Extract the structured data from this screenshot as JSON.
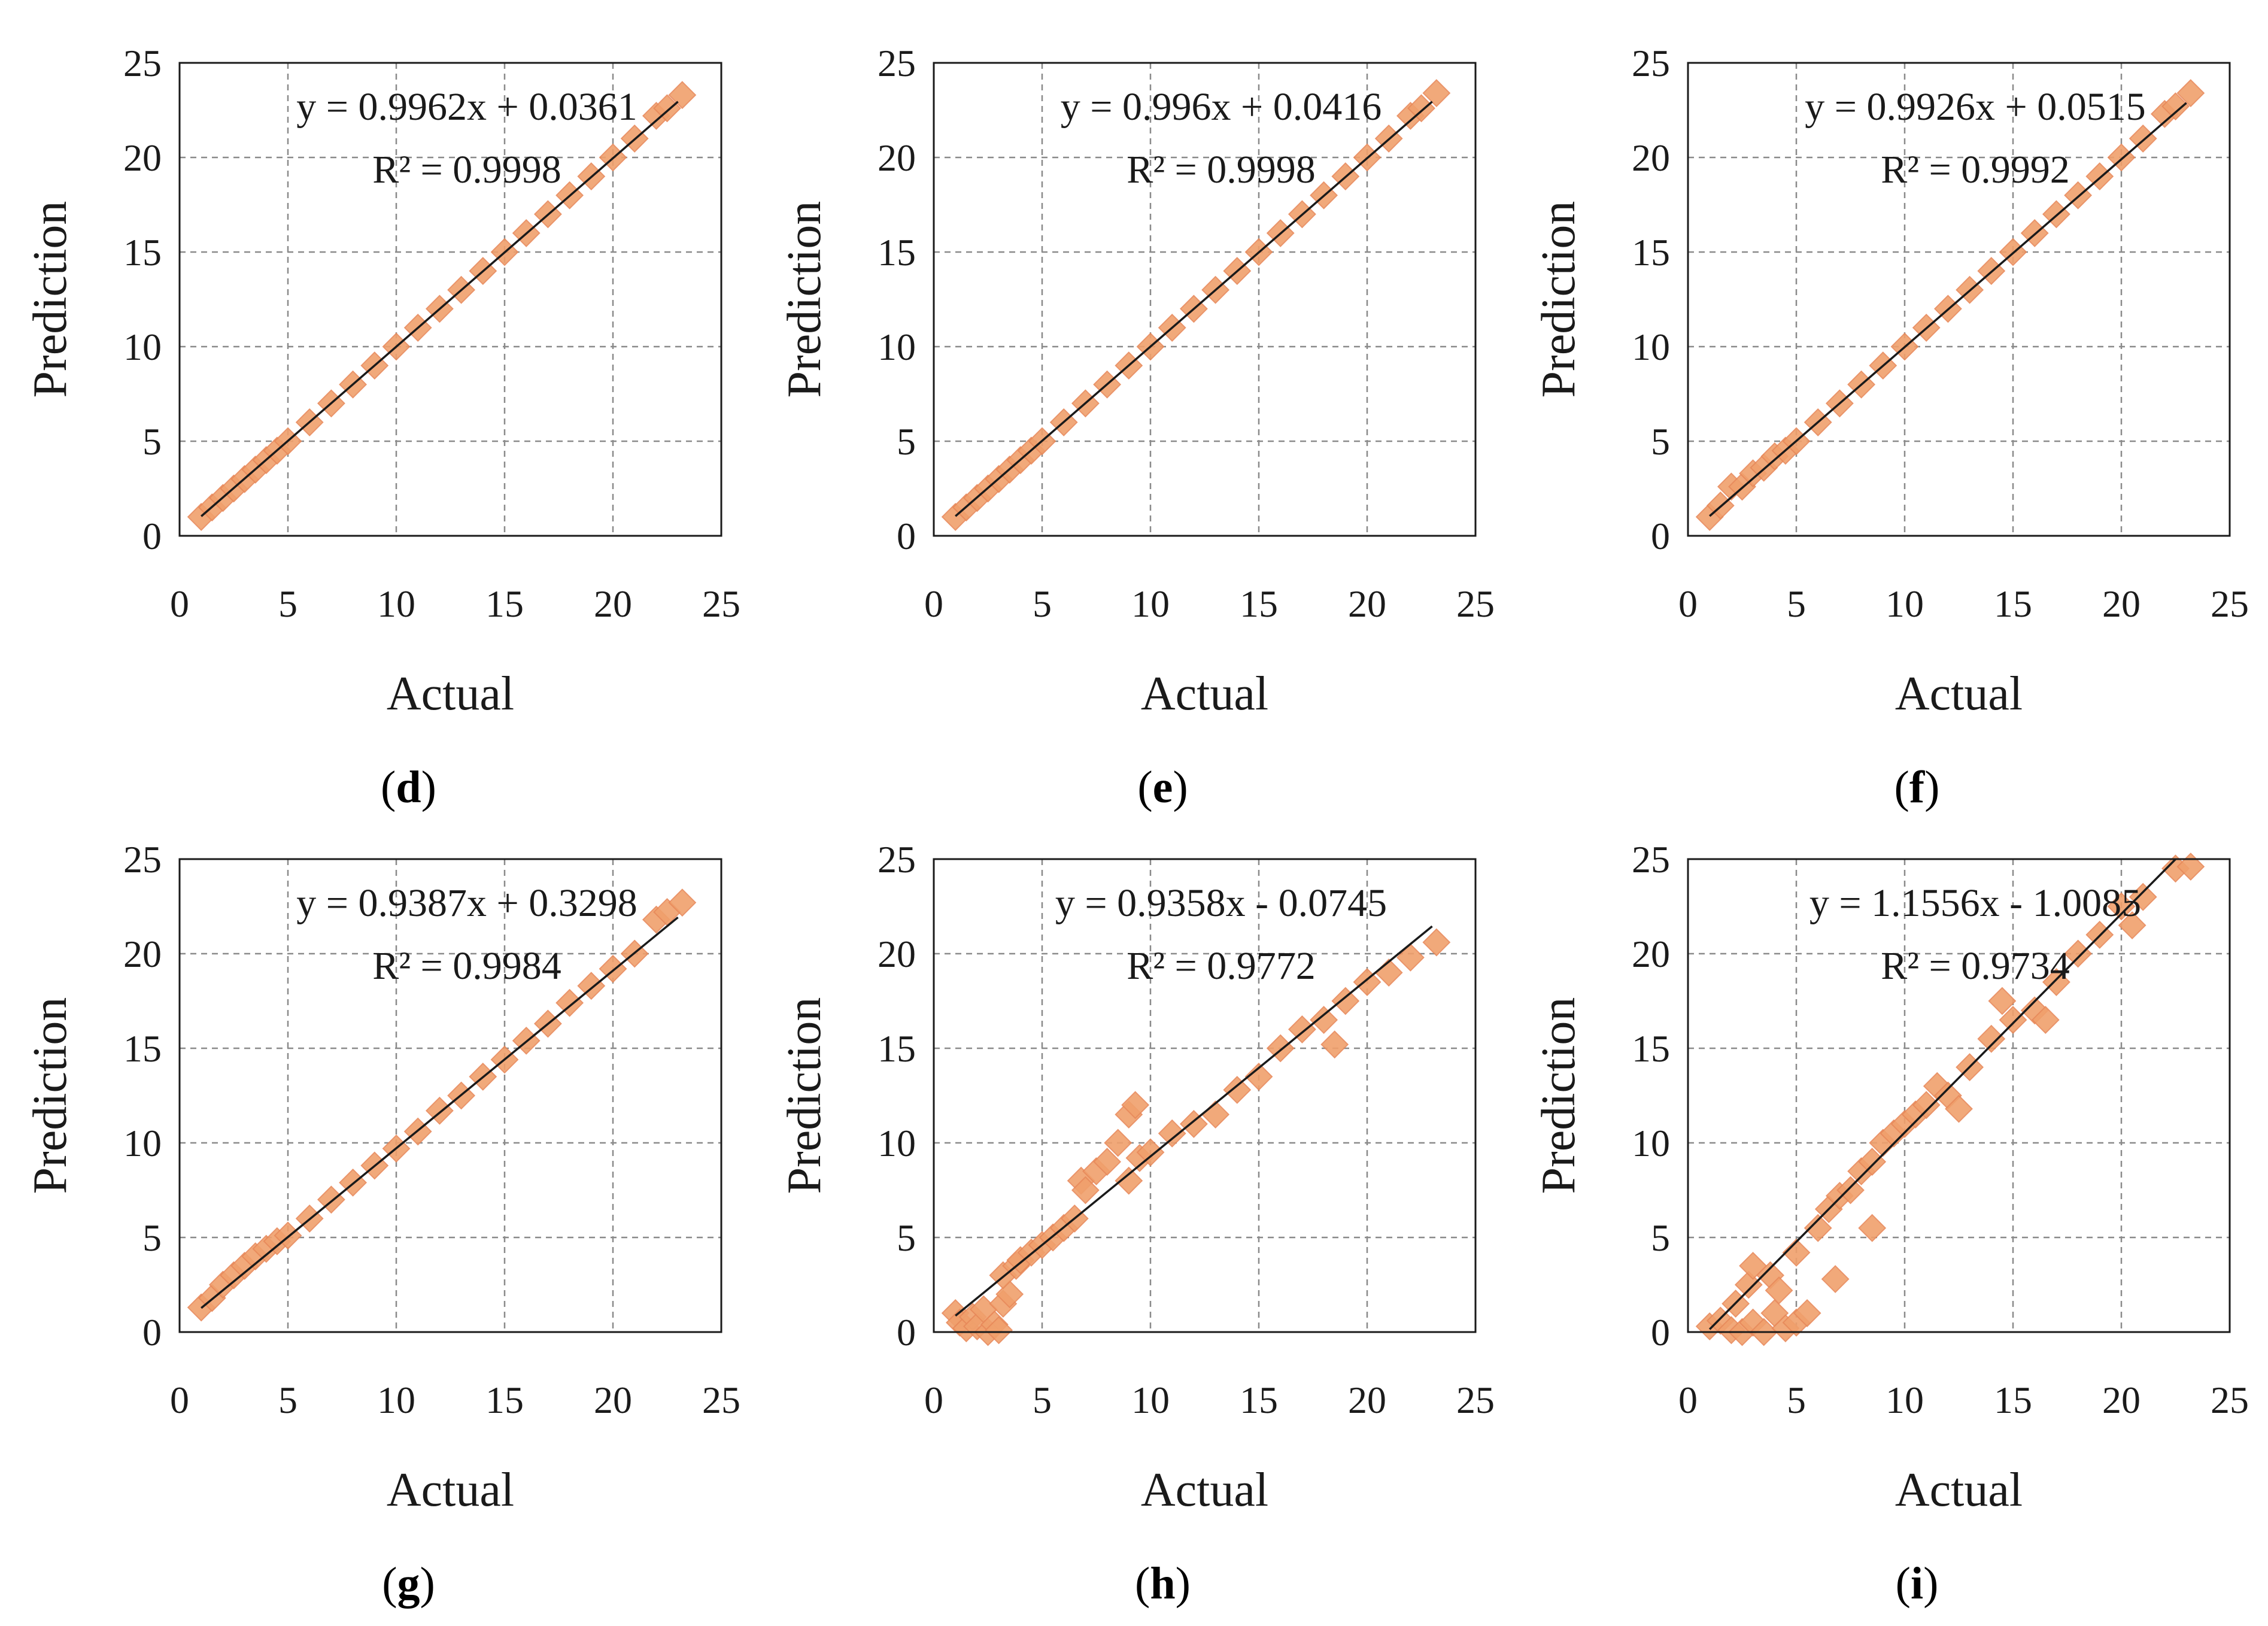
{
  "style": {
    "marker_color": "#f0a06c",
    "marker_stroke": "#e8895a",
    "line_color": "#1a1a1a",
    "grid_color": "#8a8a8a",
    "frame_color": "#1a1a1a"
  },
  "chart_data": [
    {
      "panel": "d",
      "type": "scatter",
      "xlabel": "Actual",
      "ylabel": "Prediction",
      "xlim": [
        0,
        25
      ],
      "ylim": [
        0,
        25
      ],
      "xticks": [
        0,
        5,
        10,
        15,
        20,
        25
      ],
      "yticks": [
        0,
        5,
        10,
        15,
        20,
        25
      ],
      "grid": true,
      "equation": "y = 0.9962x + 0.0361",
      "r2": "R² = 0.9998",
      "trendline": {
        "slope": 0.9962,
        "intercept": 0.0361,
        "x_range": [
          1.0,
          23.0
        ]
      },
      "points": [
        [
          1.0,
          1.0
        ],
        [
          1.5,
          1.5
        ],
        [
          2,
          2
        ],
        [
          2.5,
          2.5
        ],
        [
          3,
          3
        ],
        [
          3.5,
          3.5
        ],
        [
          4,
          4
        ],
        [
          4.5,
          4.5
        ],
        [
          5,
          5
        ],
        [
          6,
          6
        ],
        [
          7,
          7
        ],
        [
          8,
          8
        ],
        [
          9,
          9
        ],
        [
          10,
          10
        ],
        [
          11,
          11
        ],
        [
          12,
          12
        ],
        [
          13,
          13
        ],
        [
          14,
          14
        ],
        [
          15,
          15
        ],
        [
          16,
          16
        ],
        [
          17,
          17
        ],
        [
          18,
          18
        ],
        [
          19,
          19
        ],
        [
          20,
          20
        ],
        [
          21,
          21
        ],
        [
          22,
          22.2
        ],
        [
          22.5,
          22.6
        ],
        [
          23.2,
          23.3
        ]
      ]
    },
    {
      "panel": "e",
      "type": "scatter",
      "xlabel": "Actual",
      "ylabel": "Prediction",
      "xlim": [
        0,
        25
      ],
      "ylim": [
        0,
        25
      ],
      "xticks": [
        0,
        5,
        10,
        15,
        20,
        25
      ],
      "yticks": [
        0,
        5,
        10,
        15,
        20,
        25
      ],
      "grid": true,
      "equation": "y = 0.996x + 0.0416",
      "r2": "R² = 0.9998",
      "trendline": {
        "slope": 0.996,
        "intercept": 0.0416,
        "x_range": [
          1.0,
          23.0
        ]
      },
      "points": [
        [
          1.0,
          1.0
        ],
        [
          1.5,
          1.5
        ],
        [
          2,
          2
        ],
        [
          2.5,
          2.5
        ],
        [
          3,
          3
        ],
        [
          3.5,
          3.5
        ],
        [
          4,
          4
        ],
        [
          4.5,
          4.5
        ],
        [
          5,
          5
        ],
        [
          6,
          6
        ],
        [
          7,
          7
        ],
        [
          8,
          8
        ],
        [
          9,
          9
        ],
        [
          10,
          10
        ],
        [
          11,
          11
        ],
        [
          12,
          12
        ],
        [
          13,
          13
        ],
        [
          14,
          14
        ],
        [
          15,
          15
        ],
        [
          16,
          16
        ],
        [
          17,
          17
        ],
        [
          18,
          18
        ],
        [
          19,
          19
        ],
        [
          20,
          20
        ],
        [
          21,
          21
        ],
        [
          22,
          22.2
        ],
        [
          22.5,
          22.6
        ],
        [
          23.2,
          23.4
        ]
      ]
    },
    {
      "panel": "f",
      "type": "scatter",
      "xlabel": "Actual",
      "ylabel": "Prediction",
      "xlim": [
        0,
        25
      ],
      "ylim": [
        0,
        25
      ],
      "xticks": [
        0,
        5,
        10,
        15,
        20,
        25
      ],
      "yticks": [
        0,
        5,
        10,
        15,
        20,
        25
      ],
      "grid": true,
      "equation": "y = 0.9926x + 0.0515",
      "r2": "R² = 0.9992",
      "trendline": {
        "slope": 0.9926,
        "intercept": 0.0515,
        "x_range": [
          1.0,
          23.0
        ]
      },
      "points": [
        [
          1.0,
          1.0
        ],
        [
          1.5,
          1.6
        ],
        [
          2,
          2.6
        ],
        [
          2.5,
          2.6
        ],
        [
          3,
          3.3
        ],
        [
          3.5,
          3.6
        ],
        [
          4,
          4.2
        ],
        [
          4.5,
          4.5
        ],
        [
          5,
          5
        ],
        [
          6,
          6
        ],
        [
          7,
          7
        ],
        [
          8,
          8
        ],
        [
          9,
          9
        ],
        [
          10,
          10
        ],
        [
          11,
          11
        ],
        [
          12,
          12
        ],
        [
          13,
          13
        ],
        [
          14,
          14
        ],
        [
          15,
          15
        ],
        [
          16,
          16
        ],
        [
          17,
          17
        ],
        [
          18,
          18
        ],
        [
          19,
          19
        ],
        [
          20,
          20
        ],
        [
          21,
          21
        ],
        [
          22,
          22.3
        ],
        [
          22.5,
          22.7
        ],
        [
          23.2,
          23.4
        ]
      ]
    },
    {
      "panel": "g",
      "type": "scatter",
      "xlabel": "Actual",
      "ylabel": "Prediction",
      "xlim": [
        0,
        25
      ],
      "ylim": [
        0,
        25
      ],
      "xticks": [
        0,
        5,
        10,
        15,
        20,
        25
      ],
      "yticks": [
        0,
        5,
        10,
        15,
        20,
        25
      ],
      "grid": true,
      "equation": "y = 0.9387x + 0.3298",
      "r2": "R² = 0.9984",
      "trendline": {
        "slope": 0.9387,
        "intercept": 0.3298,
        "x_range": [
          1.0,
          23.0
        ]
      },
      "points": [
        [
          1.0,
          1.3
        ],
        [
          1.5,
          1.8
        ],
        [
          2,
          2.5
        ],
        [
          2.5,
          3.0
        ],
        [
          3,
          3.5
        ],
        [
          3.5,
          4.0
        ],
        [
          4,
          4.4
        ],
        [
          4.5,
          4.8
        ],
        [
          5,
          5.1
        ],
        [
          6,
          6
        ],
        [
          7,
          7
        ],
        [
          8,
          7.9
        ],
        [
          9,
          8.8
        ],
        [
          10,
          9.7
        ],
        [
          11,
          10.6
        ],
        [
          12,
          11.7
        ],
        [
          13,
          12.5
        ],
        [
          14,
          13.5
        ],
        [
          15,
          14.4
        ],
        [
          16,
          15.4
        ],
        [
          17,
          16.3
        ],
        [
          18,
          17.4
        ],
        [
          19,
          18.3
        ],
        [
          20,
          19.2
        ],
        [
          21,
          20.0
        ],
        [
          22,
          21.8
        ],
        [
          22.5,
          22.2
        ],
        [
          23.2,
          22.7
        ]
      ]
    },
    {
      "panel": "h",
      "type": "scatter",
      "xlabel": "Actual",
      "ylabel": "Prediction",
      "xlim": [
        0,
        25
      ],
      "ylim": [
        0,
        25
      ],
      "xticks": [
        0,
        5,
        10,
        15,
        20,
        25
      ],
      "yticks": [
        0,
        5,
        10,
        15,
        20,
        25
      ],
      "grid": true,
      "equation": "y = 0.9358x - 0.0745",
      "r2": "R² = 0.9772",
      "trendline": {
        "slope": 0.9358,
        "intercept": -0.0745,
        "x_range": [
          1.0,
          23.0
        ]
      },
      "points": [
        [
          1.0,
          1.0
        ],
        [
          1.2,
          0.5
        ],
        [
          1.5,
          0.2
        ],
        [
          1.8,
          0.8
        ],
        [
          2,
          0.3
        ],
        [
          2.3,
          1.2
        ],
        [
          2.5,
          0.0
        ],
        [
          2.8,
          0.4
        ],
        [
          3,
          0.1
        ],
        [
          3.2,
          1.5
        ],
        [
          3.5,
          2.0
        ],
        [
          3.2,
          3.0
        ],
        [
          3.8,
          3.5
        ],
        [
          4,
          3.8
        ],
        [
          4.5,
          4.2
        ],
        [
          5,
          4.6
        ],
        [
          5.5,
          5.0
        ],
        [
          6,
          5.5
        ],
        [
          6.5,
          6.0
        ],
        [
          6.8,
          8.0
        ],
        [
          7,
          7.5
        ],
        [
          7.5,
          8.5
        ],
        [
          8,
          9.0
        ],
        [
          8.5,
          10.0
        ],
        [
          9,
          11.5
        ],
        [
          9.3,
          12.0
        ],
        [
          9,
          8.0
        ],
        [
          9.5,
          9.2
        ],
        [
          10,
          9.5
        ],
        [
          11,
          10.5
        ],
        [
          12,
          11.0
        ],
        [
          13,
          11.5
        ],
        [
          14,
          12.8
        ],
        [
          15,
          13.5
        ],
        [
          16,
          15.0
        ],
        [
          17,
          16.0
        ],
        [
          18,
          16.5
        ],
        [
          18.5,
          15.2
        ],
        [
          19,
          17.5
        ],
        [
          20,
          18.5
        ],
        [
          21,
          19.0
        ],
        [
          22,
          19.8
        ],
        [
          23.2,
          20.6
        ]
      ]
    },
    {
      "panel": "i",
      "type": "scatter",
      "xlabel": "Actual",
      "ylabel": "Prediction",
      "xlim": [
        0,
        25
      ],
      "ylim": [
        0,
        25
      ],
      "xticks": [
        0,
        5,
        10,
        15,
        20,
        25
      ],
      "yticks": [
        0,
        5,
        10,
        15,
        20,
        25
      ],
      "grid": true,
      "equation": "y = 1.1556x - 1.0085",
      "r2": "R² = 0.9734",
      "trendline": {
        "slope": 1.1556,
        "intercept": -1.0085,
        "x_range": [
          1.0,
          22.5
        ]
      },
      "points": [
        [
          1.0,
          0.3
        ],
        [
          1.5,
          0.6
        ],
        [
          2,
          0.1
        ],
        [
          2.2,
          1.5
        ],
        [
          2.5,
          0.0
        ],
        [
          2.8,
          2.5
        ],
        [
          3,
          0.5
        ],
        [
          3,
          3.5
        ],
        [
          3.5,
          0.0
        ],
        [
          3.8,
          3.0
        ],
        [
          4,
          1.0
        ],
        [
          4.2,
          2.2
        ],
        [
          4.5,
          0.2
        ],
        [
          5,
          0.5
        ],
        [
          5,
          4.2
        ],
        [
          5.5,
          1.0
        ],
        [
          6,
          5.5
        ],
        [
          6.5,
          6.5
        ],
        [
          6.8,
          2.8
        ],
        [
          7,
          7.2
        ],
        [
          7.5,
          7.5
        ],
        [
          8,
          8.5
        ],
        [
          8.5,
          5.5
        ],
        [
          8.5,
          9.0
        ],
        [
          9,
          10.0
        ],
        [
          9.5,
          10.5
        ],
        [
          10,
          11.0
        ],
        [
          10.5,
          11.5
        ],
        [
          11,
          12.0
        ],
        [
          11.5,
          13.0
        ],
        [
          12,
          12.5
        ],
        [
          12.5,
          11.8
        ],
        [
          13,
          14.0
        ],
        [
          14,
          15.5
        ],
        [
          14.5,
          17.5
        ],
        [
          15,
          16.5
        ],
        [
          16,
          17.0
        ],
        [
          16.5,
          16.5
        ],
        [
          17,
          18.5
        ],
        [
          18,
          20.0
        ],
        [
          19,
          21.0
        ],
        [
          20,
          22.5
        ],
        [
          20.5,
          21.5
        ],
        [
          21,
          23.0
        ],
        [
          22.5,
          24.5
        ],
        [
          23.2,
          24.6
        ]
      ]
    }
  ]
}
